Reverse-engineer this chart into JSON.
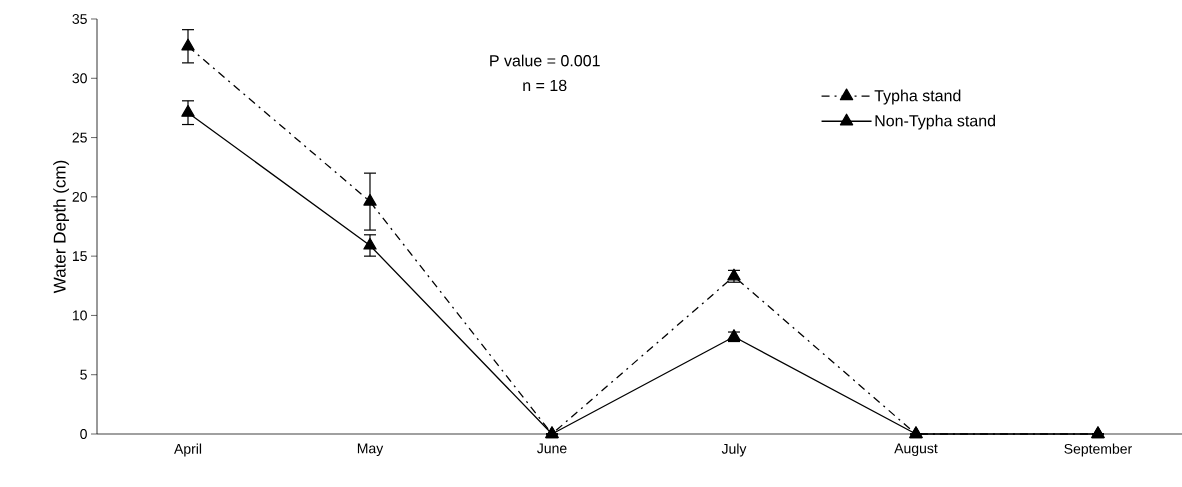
{
  "chart_data": {
    "type": "line",
    "ylabel": "Water Depth (cm)",
    "categories": [
      "April",
      "May",
      "June",
      "July",
      "August",
      "September"
    ],
    "series": [
      {
        "name": "Typha stand",
        "color": "#000000",
        "line_style": "dashdot",
        "values": [
          32.7,
          19.6,
          0,
          13.3,
          0,
          0
        ],
        "errors": [
          1.4,
          2.4,
          null,
          0.5,
          null,
          null
        ]
      },
      {
        "name": "Non-Typha stand",
        "color": "#000000",
        "line_style": "solid",
        "values": [
          27.1,
          15.9,
          0,
          8.2,
          0,
          0
        ],
        "errors": [
          1,
          0.9,
          null,
          0.4,
          null,
          null
        ]
      }
    ],
    "marker": "triangle",
    "ylim": [
      0,
      35
    ],
    "yticks": [
      0,
      5,
      10,
      15,
      20,
      25,
      30,
      35
    ],
    "grid": false,
    "legend": "top right",
    "annotations": [
      "P value = 0.001",
      "n = 18"
    ]
  }
}
